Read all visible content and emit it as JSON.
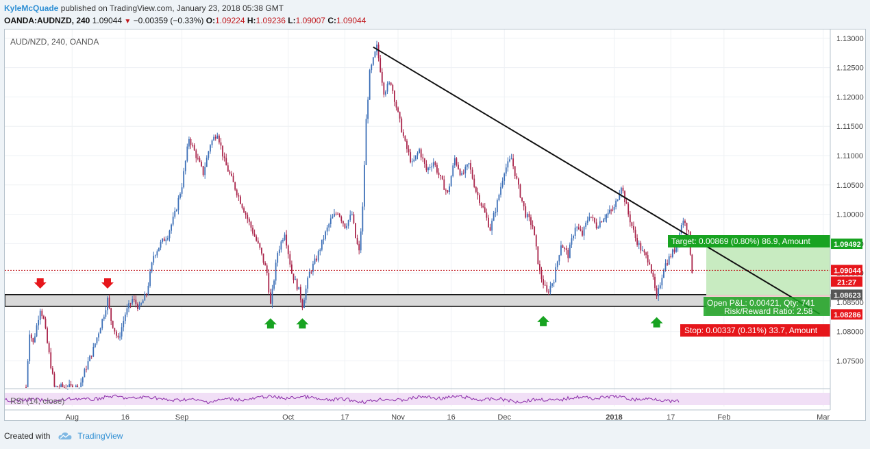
{
  "header": {
    "author": "KyleMcQuade",
    "published_text": "published on TradingView.com, January 23, 2018 05:38 GMT",
    "symbol": "OANDA:AUDNZD, 240",
    "last": "1.09044",
    "change": "−0.00359 (−0.33%)",
    "open_label": "O:",
    "open": "1.09224",
    "high_label": "H:",
    "high": "1.09236",
    "low_label": "L:",
    "low": "1.09007",
    "close_label": "C:",
    "close": "1.09044"
  },
  "footer": {
    "created_with": "Created with",
    "brand": "TradingView"
  },
  "chart_data": {
    "type": "line",
    "title": "AUD/NZD, 240, OANDA",
    "ylim": [
      1.0705,
      1.1315
    ],
    "yticks": [
      "1.07500",
      "1.08000",
      "1.08500",
      "1.09000",
      "1.09500",
      "1.10000",
      "1.10500",
      "1.11000",
      "1.11500",
      "1.12000",
      "1.12500",
      "1.13000"
    ],
    "xlim": [
      "2017-07-13",
      "2018-03-03"
    ],
    "xticks": [
      {
        "date": "2017-08-01",
        "label": "Aug",
        "bold": false
      },
      {
        "date": "2017-08-16",
        "label": "16",
        "bold": false
      },
      {
        "date": "2017-09-01",
        "label": "Sep",
        "bold": false
      },
      {
        "date": "2017-10-01",
        "label": "Oct",
        "bold": false
      },
      {
        "date": "2017-10-17",
        "label": "17",
        "bold": false
      },
      {
        "date": "2017-11-01",
        "label": "Nov",
        "bold": false
      },
      {
        "date": "2017-11-16",
        "label": "16",
        "bold": false
      },
      {
        "date": "2017-12-01",
        "label": "Dec",
        "bold": false
      },
      {
        "date": "2018-01-01",
        "label": "2018",
        "bold": true
      },
      {
        "date": "2018-01-17",
        "label": "17",
        "bold": false
      },
      {
        "date": "2018-02-01",
        "label": "Feb",
        "bold": false
      },
      {
        "date": "2018-03-01",
        "label": "Mar",
        "bold": false
      }
    ],
    "price_path": [
      [
        "2017-07-19",
        1.0705
      ],
      [
        "2017-07-20",
        1.08
      ],
      [
        "2017-07-21",
        1.078
      ],
      [
        "2017-07-23",
        1.084
      ],
      [
        "2017-07-24",
        1.082
      ],
      [
        "2017-07-25",
        1.078
      ],
      [
        "2017-07-27",
        1.0705
      ],
      [
        "2017-08-03",
        1.0705
      ],
      [
        "2017-08-05",
        1.074
      ],
      [
        "2017-08-07",
        1.077
      ],
      [
        "2017-08-09",
        1.081
      ],
      [
        "2017-08-10",
        1.083
      ],
      [
        "2017-08-11",
        1.0855
      ],
      [
        "2017-08-12",
        1.082
      ],
      [
        "2017-08-14",
        1.0785
      ],
      [
        "2017-08-16",
        1.083
      ],
      [
        "2017-08-18",
        1.0855
      ],
      [
        "2017-08-20",
        1.084
      ],
      [
        "2017-08-22",
        1.0865
      ],
      [
        "2017-08-24",
        1.093
      ],
      [
        "2017-08-26",
        1.095
      ],
      [
        "2017-08-28",
        1.0965
      ],
      [
        "2017-08-30",
        1.1
      ],
      [
        "2017-09-01",
        1.105
      ],
      [
        "2017-09-03",
        1.113
      ],
      [
        "2017-09-05",
        1.11
      ],
      [
        "2017-09-07",
        1.107
      ],
      [
        "2017-09-09",
        1.112
      ],
      [
        "2017-09-11",
        1.114
      ],
      [
        "2017-09-13",
        1.109
      ],
      [
        "2017-09-15",
        1.106
      ],
      [
        "2017-09-17",
        1.103
      ],
      [
        "2017-09-19",
        1.1
      ],
      [
        "2017-09-21",
        1.097
      ],
      [
        "2017-09-23",
        1.094
      ],
      [
        "2017-09-25",
        1.09
      ],
      [
        "2017-09-26",
        1.0845
      ],
      [
        "2017-09-28",
        1.0935
      ],
      [
        "2017-09-30",
        1.097
      ],
      [
        "2017-10-02",
        1.09
      ],
      [
        "2017-10-04",
        1.087
      ],
      [
        "2017-10-05",
        1.0845
      ],
      [
        "2017-10-07",
        1.09
      ],
      [
        "2017-10-09",
        1.0925
      ],
      [
        "2017-10-11",
        1.096
      ],
      [
        "2017-10-13",
        1.099
      ],
      [
        "2017-10-15",
        1.1005
      ],
      [
        "2017-10-17",
        1.098
      ],
      [
        "2017-10-19",
        1.1
      ],
      [
        "2017-10-20",
        1.096
      ],
      [
        "2017-10-21",
        1.0935
      ],
      [
        "2017-10-22",
        1.101
      ],
      [
        "2017-10-23",
        1.116
      ],
      [
        "2017-10-24",
        1.124
      ],
      [
        "2017-10-26",
        1.1285
      ],
      [
        "2017-10-28",
        1.121
      ],
      [
        "2017-10-30",
        1.1225
      ],
      [
        "2017-11-01",
        1.117
      ],
      [
        "2017-11-03",
        1.112
      ],
      [
        "2017-11-05",
        1.1085
      ],
      [
        "2017-11-07",
        1.111
      ],
      [
        "2017-11-09",
        1.1075
      ],
      [
        "2017-11-11",
        1.109
      ],
      [
        "2017-11-13",
        1.106
      ],
      [
        "2017-11-15",
        1.1035
      ],
      [
        "2017-11-17",
        1.1095
      ],
      [
        "2017-11-19",
        1.1065
      ],
      [
        "2017-11-21",
        1.1085
      ],
      [
        "2017-11-23",
        1.104
      ],
      [
        "2017-11-25",
        1.101
      ],
      [
        "2017-11-27",
        1.0975
      ],
      [
        "2017-11-29",
        1.102
      ],
      [
        "2017-12-01",
        1.1075
      ],
      [
        "2017-12-03",
        1.1095
      ],
      [
        "2017-12-05",
        1.1045
      ],
      [
        "2017-12-07",
        1.1
      ],
      [
        "2017-12-09",
        1.098
      ],
      [
        "2017-12-11",
        1.09
      ],
      [
        "2017-12-13",
        1.0865
      ],
      [
        "2017-12-15",
        1.089
      ],
      [
        "2017-12-17",
        1.095
      ],
      [
        "2017-12-19",
        1.093
      ],
      [
        "2017-12-21",
        1.098
      ],
      [
        "2017-12-23",
        1.0965
      ],
      [
        "2017-12-25",
        1.1
      ],
      [
        "2017-12-27",
        1.098
      ],
      [
        "2017-12-29",
        1.0995
      ],
      [
        "2018-01-01",
        1.101
      ],
      [
        "2018-01-03",
        1.105
      ],
      [
        "2018-01-05",
        1.1
      ],
      [
        "2018-01-07",
        1.096
      ],
      [
        "2018-01-09",
        1.0935
      ],
      [
        "2018-01-11",
        1.092
      ],
      [
        "2018-01-13",
        1.0855
      ],
      [
        "2018-01-15",
        1.091
      ],
      [
        "2018-01-17",
        1.093
      ],
      [
        "2018-01-19",
        1.095
      ],
      [
        "2018-01-20",
        1.0985
      ],
      [
        "2018-01-21",
        1.099
      ],
      [
        "2018-01-22",
        1.0965
      ],
      [
        "2018-01-23",
        1.09044
      ]
    ],
    "trendline": {
      "from": [
        "2017-10-25",
        1.1285
      ],
      "to": [
        "2018-02-28",
        1.083
      ]
    },
    "support_zone": {
      "top": 1.0863,
      "bottom": 1.0843
    },
    "last_price_line": 1.09044,
    "down_arrows": [
      [
        "2017-07-23",
        1.0878
      ],
      [
        "2017-08-11",
        1.0878
      ]
    ],
    "up_arrows": [
      [
        "2017-09-26",
        1.0818
      ],
      [
        "2017-10-05",
        1.0818
      ],
      [
        "2017-12-12",
        1.0822
      ],
      [
        "2018-01-13",
        1.082
      ]
    ],
    "position": {
      "start_date": "2018-01-27",
      "end_date": "2018-03-03",
      "target": 1.09492,
      "entry": 1.08623,
      "stop": 1.08286,
      "target_label": "Target: 0.00869 (0.80%) 86.9, Amount",
      "open_label": "Open P&L: 0.00421, Qty: 741",
      "rr_label": "Risk/Reward Ratio: 2.58",
      "stop_label": "Stop: 0.00337 (0.31%) 33.7, Amount"
    },
    "price_labels": {
      "target": "1.09492",
      "last": "1.09044",
      "countdown": "21:27",
      "entry": "1.08623",
      "stop": "1.08286"
    },
    "rsi": {
      "label": "RSI (14, close)"
    },
    "colors": {
      "up": "#3c6fb7",
      "down": "#a9244a",
      "trend": "#111111",
      "profit": "#c8ebc1",
      "loss": "#f6cfd3",
      "green": "#18a321",
      "red": "#e6161b",
      "rsi": "#8a2aa8",
      "rsi_band": "#f1dff6"
    }
  }
}
